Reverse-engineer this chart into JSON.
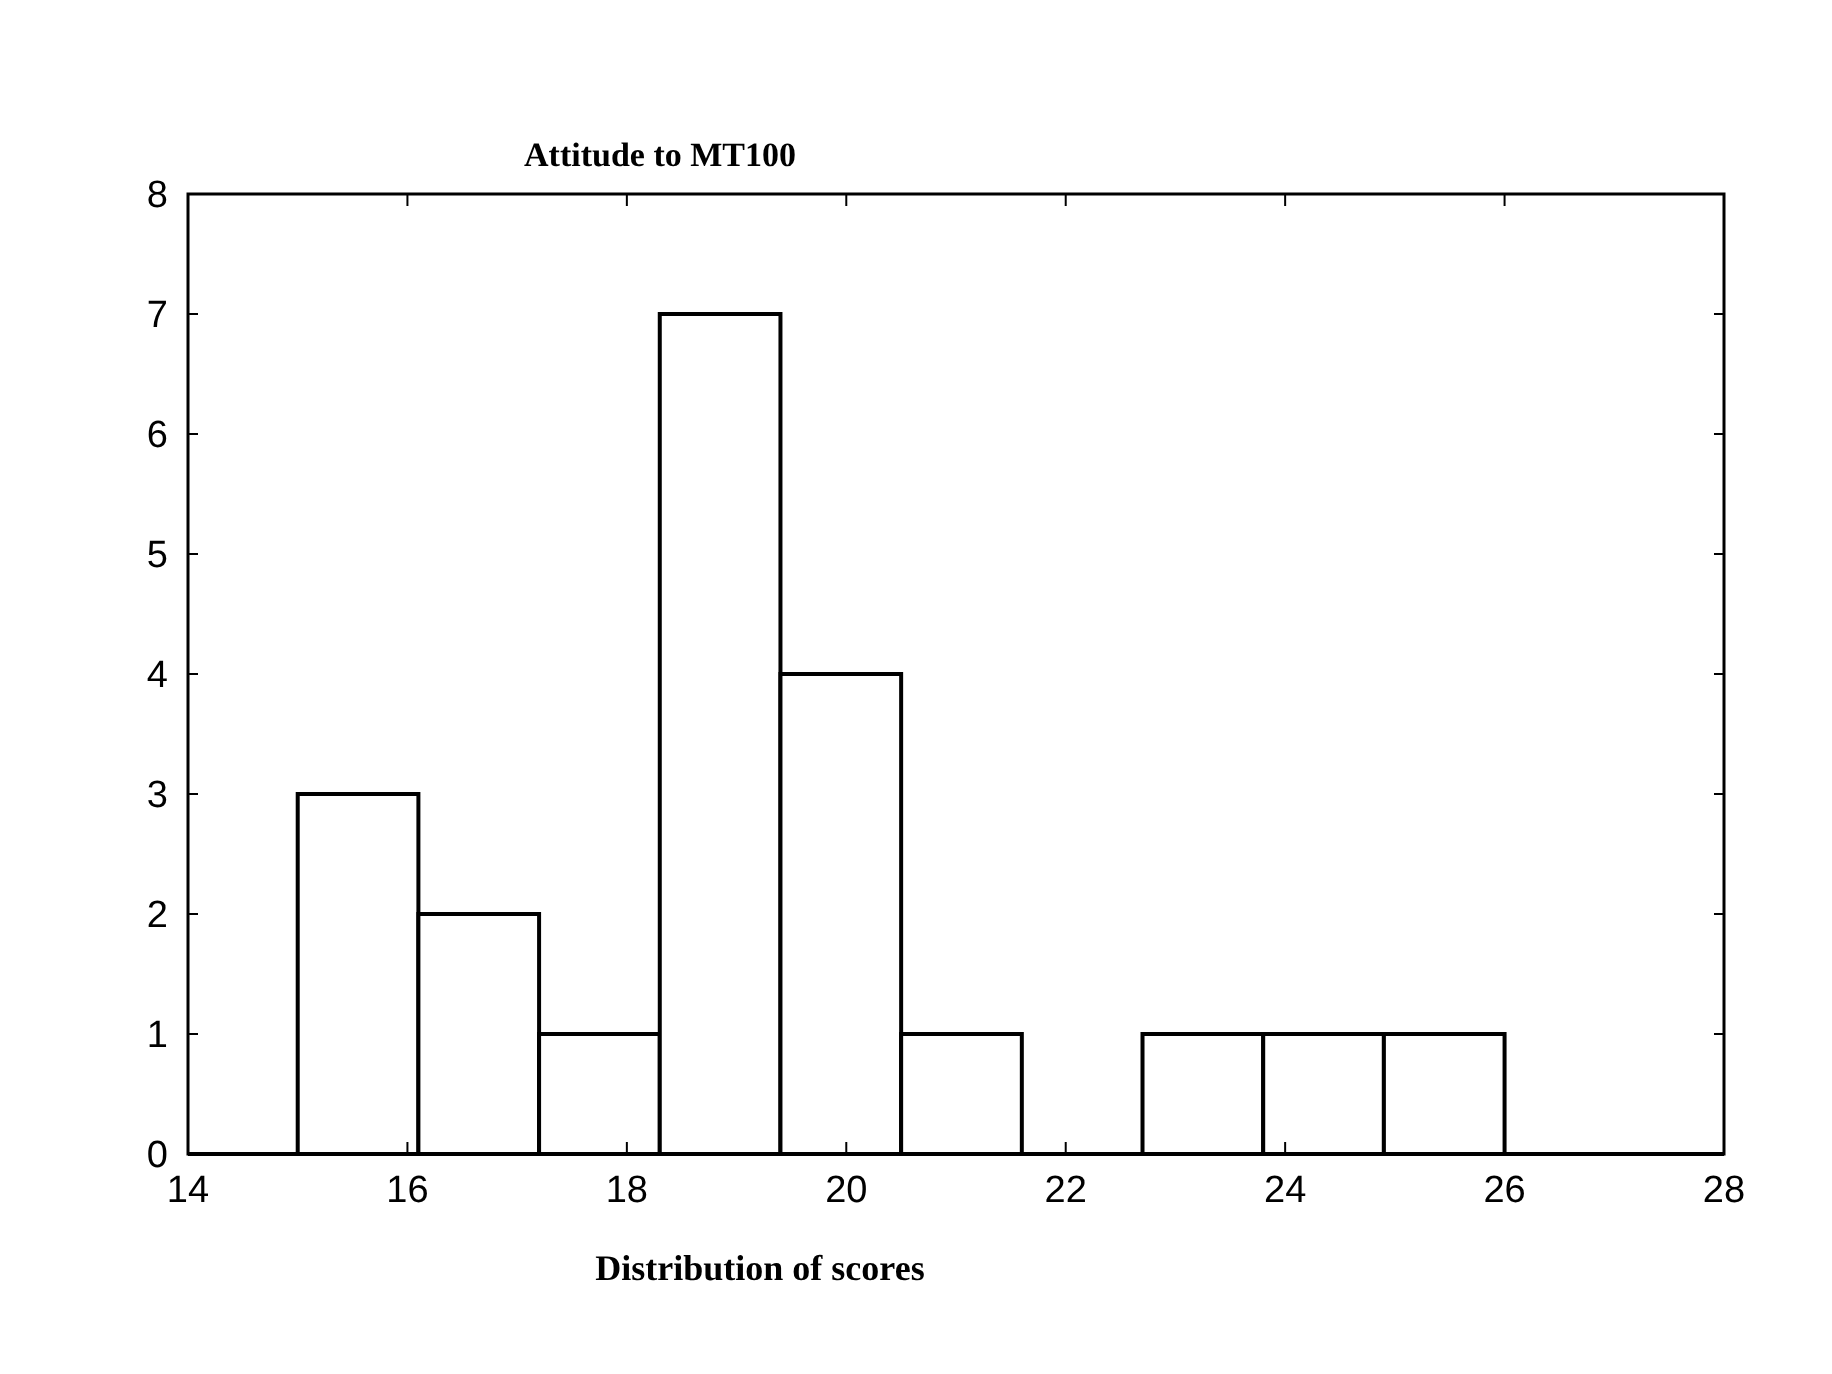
{
  "chart_data": {
    "type": "histogram",
    "title": "Attitude to MT100",
    "xlabel": "Distribution of scores",
    "bins": [
      15,
      16.1,
      17.2,
      18.3,
      19.4,
      20.5,
      21.6,
      22.7,
      23.8,
      24.9,
      26
    ],
    "values": [
      3,
      2,
      1,
      7,
      4,
      1,
      0,
      1,
      1,
      1
    ],
    "color": "#ffffff",
    "xlim": [
      14,
      28
    ],
    "xticks": [
      14,
      16,
      18,
      20,
      22,
      24,
      26,
      28
    ],
    "ylim": [
      0,
      8
    ],
    "yticks": [
      0,
      1,
      2,
      3,
      4,
      5,
      6,
      7,
      8
    ],
    "grid": false
  }
}
